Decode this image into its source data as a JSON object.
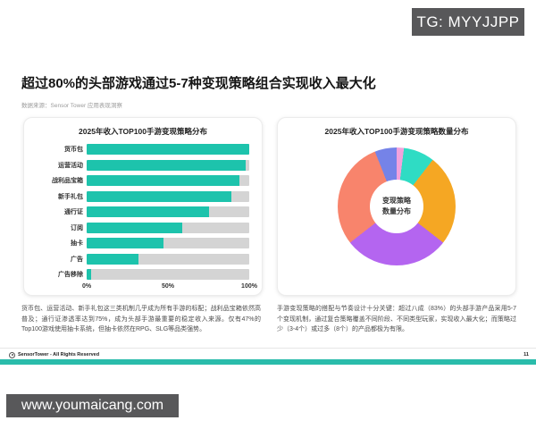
{
  "overlay": {
    "telegram_badge": "TG: MYYJJPP",
    "website_badge": "www.youmaicang.com"
  },
  "header": {
    "title": "超过80%的头部游戏通过5-7种变现策略组合实现收入最大化",
    "source": "数据来源：Sensor Tower 应用表现洞察"
  },
  "chart_data": [
    {
      "type": "bar",
      "orientation": "horizontal",
      "title": "2025年收入TOP100手游变现策略分布",
      "categories": [
        "货币包",
        "运营活动",
        "战利品宝箱",
        "新手礼包",
        "通行证",
        "订阅",
        "抽卡",
        "广告",
        "广告移除"
      ],
      "values": [
        100,
        98,
        94,
        89,
        75,
        59,
        47,
        32,
        3
      ],
      "unit": "%",
      "xlim": [
        0,
        100
      ],
      "x_ticks": [
        {
          "label": "0%",
          "pos": 0
        },
        {
          "label": "50%",
          "pos": 50
        },
        {
          "label": "100%",
          "pos": 100
        }
      ],
      "bar_color": "#1dc3ac",
      "track_color": "#d4d4d4",
      "grid": false,
      "legend": "none"
    },
    {
      "type": "pie",
      "subtype": "donut",
      "title": "2025年收入TOP100手游变现策略数量分布",
      "center_label_line1": "变现策略",
      "center_label_line2": "数量分布",
      "start_angle_deg": 0,
      "slices": [
        {
          "name": "slice-pink",
          "value": 2,
          "color": "#f2a2dc"
        },
        {
          "name": "slice-teal",
          "value": 8.5,
          "color": "#2fdcc4"
        },
        {
          "name": "slice-orange",
          "value": 25,
          "color": "#f5a723"
        },
        {
          "name": "slice-purple",
          "value": 29,
          "color": "#b465f0"
        },
        {
          "name": "slice-salmon",
          "value": 29.5,
          "color": "#f8846c"
        },
        {
          "name": "slice-blue",
          "value": 6,
          "color": "#7583e8"
        }
      ],
      "legend": "none"
    }
  ],
  "notes": {
    "left": "货币包、运营活动、新手礼包这三类机制几乎成为所有手游的标配；战利品宝箱依然高普及；通行证渗透率达到75%，成为头部手游最重要的稳定收入来源。仅有47%的Top100游戏使用抽卡系统，但抽卡依然在RPG、SLG等品类强势。",
    "right": "手游变现策略的搭配与节奏设计十分关键：超过八成（83%）的头部手游产品采用5-7个变现机制，通过复合策略覆盖不同阶段、不同类型玩家，实现收入最大化；而策略过少（3-4个）或过多（8个）的产品都极为有限。"
  },
  "footer": {
    "brand": "SensorTower - All Rights Reserved",
    "page": "11"
  },
  "colors": {
    "accent_teal": "#2abcab",
    "badge_gray": "#58585a"
  }
}
